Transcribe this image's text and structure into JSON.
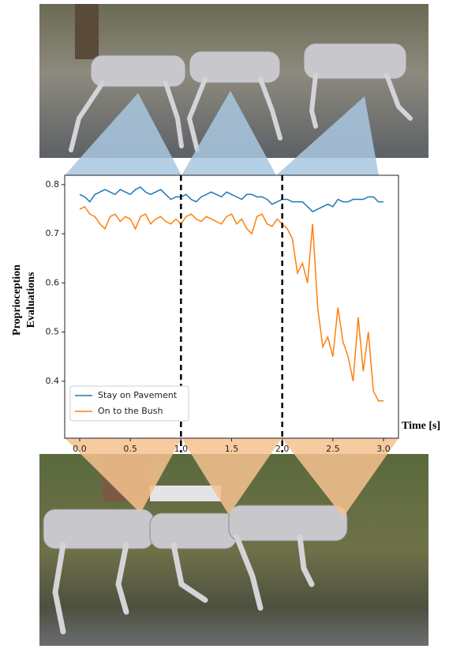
{
  "chart_data": {
    "type": "line",
    "xlabel": "Time [s]",
    "ylabel": [
      "Proprioception",
      "Evaluations"
    ],
    "x": [
      0,
      0.05,
      0.1,
      0.15,
      0.2,
      0.25,
      0.3,
      0.35,
      0.4,
      0.45,
      0.5,
      0.55,
      0.6,
      0.65,
      0.7,
      0.75,
      0.8,
      0.85,
      0.9,
      0.95,
      1.0,
      1.05,
      1.1,
      1.15,
      1.2,
      1.25,
      1.3,
      1.35,
      1.4,
      1.45,
      1.5,
      1.55,
      1.6,
      1.65,
      1.7,
      1.75,
      1.8,
      1.85,
      1.9,
      1.95,
      2.0,
      2.05,
      2.1,
      2.15,
      2.2,
      2.25,
      2.3,
      2.35,
      2.4,
      2.45,
      2.5,
      2.55,
      2.6,
      2.65,
      2.7,
      2.75,
      2.8,
      2.85,
      2.9,
      2.95,
      3.0
    ],
    "series": [
      {
        "name": "Stay on Pavement",
        "color": "#1f77b4",
        "values": [
          0.78,
          0.775,
          0.765,
          0.78,
          0.785,
          0.79,
          0.785,
          0.78,
          0.79,
          0.785,
          0.78,
          0.79,
          0.795,
          0.785,
          0.78,
          0.785,
          0.79,
          0.78,
          0.77,
          0.775,
          0.775,
          0.78,
          0.77,
          0.765,
          0.775,
          0.78,
          0.785,
          0.78,
          0.775,
          0.785,
          0.78,
          0.775,
          0.77,
          0.78,
          0.78,
          0.775,
          0.775,
          0.77,
          0.76,
          0.765,
          0.77,
          0.77,
          0.765,
          0.765,
          0.765,
          0.755,
          0.745,
          0.75,
          0.755,
          0.76,
          0.755,
          0.77,
          0.765,
          0.765,
          0.77,
          0.77,
          0.77,
          0.775,
          0.775,
          0.765,
          0.765
        ]
      },
      {
        "name": "On to the Bush",
        "color": "#ff7f0e",
        "values": [
          0.75,
          0.755,
          0.74,
          0.735,
          0.72,
          0.71,
          0.735,
          0.74,
          0.725,
          0.735,
          0.73,
          0.71,
          0.735,
          0.74,
          0.72,
          0.73,
          0.735,
          0.725,
          0.72,
          0.73,
          0.72,
          0.735,
          0.74,
          0.73,
          0.725,
          0.735,
          0.73,
          0.725,
          0.72,
          0.735,
          0.74,
          0.72,
          0.73,
          0.71,
          0.7,
          0.735,
          0.74,
          0.72,
          0.715,
          0.73,
          0.72,
          0.71,
          0.69,
          0.62,
          0.64,
          0.6,
          0.72,
          0.55,
          0.47,
          0.49,
          0.45,
          0.55,
          0.48,
          0.45,
          0.4,
          0.53,
          0.42,
          0.5,
          0.38,
          0.36,
          0.36
        ]
      }
    ],
    "xlim": [
      -0.148,
      3.148
    ],
    "ylim": [
      0.284,
      0.819
    ],
    "xticks": [
      {
        "value": 0,
        "label": "0.0"
      },
      0.5,
      {
        "value": 1,
        "label": "1.0"
      },
      1.5,
      {
        "value": 2,
        "label": "2.0"
      },
      2.5,
      {
        "value": 3,
        "label": "3.0"
      }
    ],
    "yticks": [
      0.4,
      0.5,
      0.6,
      0.7,
      0.8
    ],
    "vlines": [
      1.0,
      2.0
    ],
    "legend": "lower left"
  }
}
